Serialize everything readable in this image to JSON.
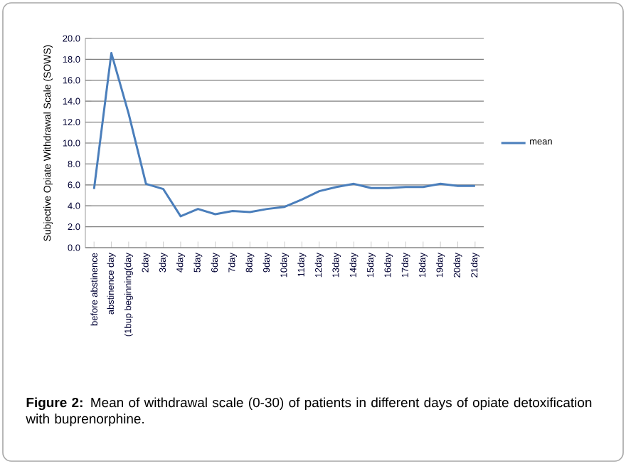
{
  "chart_data": {
    "type": "line",
    "ylabel": "Subjective Opiate Withdrawal Scale (SOWS)",
    "categories": [
      "before abstinence",
      "abstinence day",
      "(1bup beginning(day",
      "2day",
      "3day",
      "4day",
      "5day",
      "6day",
      "7day",
      "8day",
      "9day",
      "10day",
      "11day",
      "12day",
      "13day",
      "14day",
      "15day",
      "16day",
      "17day",
      "18day",
      "19day",
      "20day",
      "21day"
    ],
    "series": [
      {
        "name": "mean",
        "color": "#4a7ebb",
        "values": [
          5.6,
          18.6,
          12.8,
          6.1,
          5.6,
          3.0,
          3.7,
          3.2,
          3.5,
          3.4,
          3.7,
          3.9,
          4.6,
          5.4,
          5.8,
          6.1,
          5.7,
          5.7,
          5.8,
          5.8,
          6.1,
          5.9,
          5.9
        ]
      }
    ],
    "ylim": [
      0,
      20
    ],
    "yticks": [
      {
        "value": 0,
        "label": "0.0"
      },
      {
        "value": 2,
        "label": "2.0"
      },
      {
        "value": 4,
        "label": "4.0"
      },
      {
        "value": 6,
        "label": "6.0"
      },
      {
        "value": 8,
        "label": "8.0"
      },
      {
        "value": 10,
        "label": "10.0"
      },
      {
        "value": 12,
        "label": "12.0"
      },
      {
        "value": 14,
        "label": "14.0"
      },
      {
        "value": 16,
        "label": "16.0"
      },
      {
        "value": 18,
        "label": "18.0"
      },
      {
        "value": 20,
        "label": "20.0"
      }
    ],
    "grid": "y",
    "legend": "right",
    "marker": "none",
    "line_style": "solid",
    "annotations": [
      "**Figure 2:** Mean of withdrawal scale (0-30) of patients in different days of opiate detoxification with buprenorphine."
    ]
  }
}
